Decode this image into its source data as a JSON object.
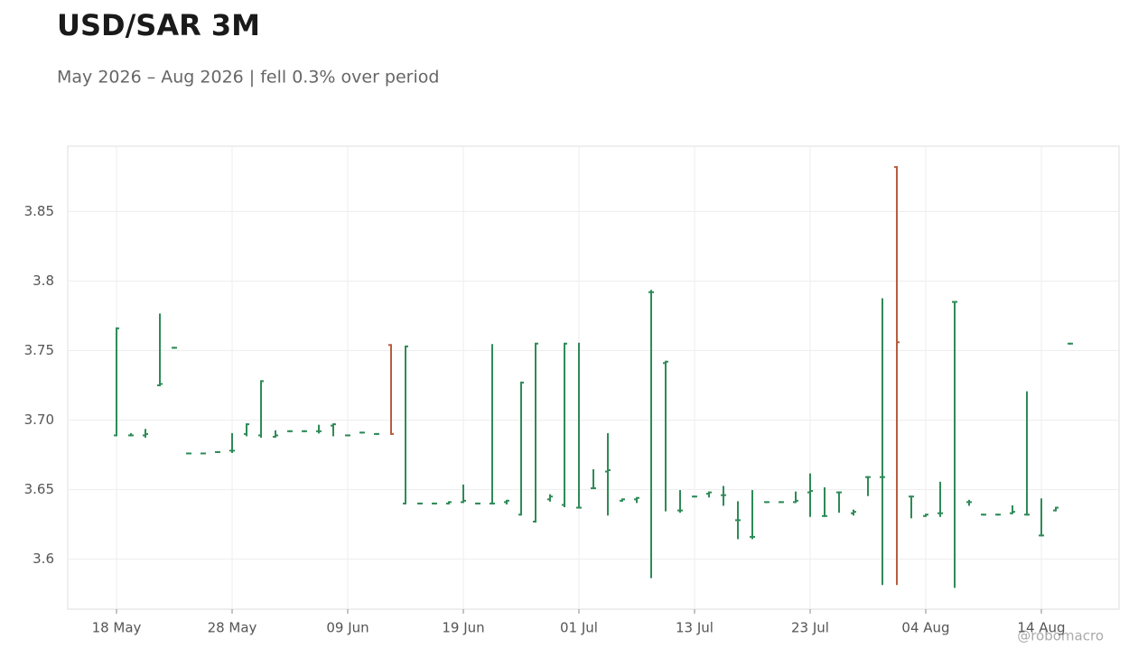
{
  "chart_data": {
    "type": "ohlc",
    "title": "USD/SAR 3M",
    "subtitle": "May 2026 – Aug 2026 | fell 0.3% over period",
    "watermark": "@robomacro",
    "categories": [
      "18 May",
      null,
      null,
      null,
      null,
      null,
      null,
      null,
      "28 May",
      null,
      null,
      null,
      null,
      null,
      null,
      null,
      "09 Jun",
      null,
      null,
      null,
      null,
      null,
      null,
      null,
      "19 Jun",
      null,
      null,
      null,
      null,
      null,
      null,
      null,
      "01 Jul",
      null,
      null,
      null,
      null,
      null,
      null,
      null,
      "13 Jul",
      null,
      null,
      null,
      null,
      null,
      null,
      null,
      "23 Jul",
      null,
      null,
      null,
      null,
      null,
      null,
      null,
      "04 Aug",
      null,
      null,
      null,
      null,
      null,
      null,
      null,
      "14 Aug",
      null,
      null
    ],
    "open": [
      3.689,
      3.689,
      3.689,
      3.725,
      3.752,
      3.676,
      3.676,
      3.677,
      3.678,
      3.69,
      3.689,
      3.688,
      3.692,
      3.692,
      3.692,
      3.696,
      3.689,
      3.691,
      3.69,
      3.754,
      3.64,
      3.64,
      3.64,
      3.64,
      3.641,
      3.64,
      3.64,
      3.641,
      3.632,
      3.627,
      3.643,
      3.639,
      3.637,
      3.651,
      3.663,
      3.642,
      3.643,
      3.792,
      3.741,
      3.635,
      3.645,
      3.647,
      3.646,
      3.628,
      3.616,
      3.641,
      3.641,
      3.641,
      3.648,
      3.631,
      3.648,
      3.633,
      3.659,
      3.659,
      3.882,
      3.645,
      3.631,
      3.633,
      3.785,
      3.641,
      3.632,
      3.632,
      3.633,
      3.632,
      3.617,
      3.635,
      3.755
    ],
    "high": [
      3.766,
      3.69,
      3.693,
      3.776,
      3.752,
      3.676,
      3.676,
      3.677,
      3.69,
      3.697,
      3.728,
      3.692,
      3.692,
      3.692,
      3.696,
      3.697,
      3.689,
      3.691,
      3.69,
      3.754,
      3.753,
      3.64,
      3.64,
      3.641,
      3.653,
      3.64,
      3.754,
      3.642,
      3.727,
      3.755,
      3.646,
      3.755,
      3.755,
      3.664,
      3.69,
      3.643,
      3.644,
      3.793,
      3.742,
      3.649,
      3.645,
      3.648,
      3.652,
      3.641,
      3.649,
      3.641,
      3.641,
      3.648,
      3.661,
      3.651,
      3.648,
      3.635,
      3.659,
      3.787,
      3.882,
      3.645,
      3.632,
      3.655,
      3.785,
      3.642,
      3.632,
      3.632,
      3.638,
      3.72,
      3.643,
      3.637,
      3.755
    ],
    "low": [
      3.689,
      3.689,
      3.688,
      3.725,
      3.752,
      3.676,
      3.676,
      3.677,
      3.677,
      3.689,
      3.688,
      3.688,
      3.692,
      3.692,
      3.691,
      3.689,
      3.689,
      3.691,
      3.69,
      3.69,
      3.64,
      3.64,
      3.64,
      3.64,
      3.641,
      3.64,
      3.64,
      3.64,
      3.632,
      3.627,
      3.642,
      3.638,
      3.637,
      3.651,
      3.632,
      3.642,
      3.641,
      3.587,
      3.635,
      3.634,
      3.645,
      3.645,
      3.639,
      3.615,
      3.615,
      3.641,
      3.641,
      3.641,
      3.631,
      3.631,
      3.634,
      3.632,
      3.646,
      3.582,
      3.582,
      3.63,
      3.631,
      3.631,
      3.58,
      3.639,
      3.632,
      3.632,
      3.633,
      3.632,
      3.617,
      3.635,
      3.755
    ],
    "close": [
      3.766,
      3.689,
      3.69,
      3.726,
      3.752,
      3.676,
      3.676,
      3.677,
      3.678,
      3.697,
      3.728,
      3.689,
      3.692,
      3.692,
      3.692,
      3.697,
      3.689,
      3.691,
      3.69,
      3.69,
      3.753,
      3.64,
      3.64,
      3.641,
      3.642,
      3.64,
      3.64,
      3.642,
      3.727,
      3.755,
      3.645,
      3.755,
      3.637,
      3.651,
      3.664,
      3.643,
      3.644,
      3.792,
      3.742,
      3.635,
      3.645,
      3.648,
      3.646,
      3.628,
      3.616,
      3.641,
      3.641,
      3.642,
      3.649,
      3.631,
      3.648,
      3.634,
      3.659,
      3.659,
      3.756,
      3.645,
      3.632,
      3.633,
      3.785,
      3.641,
      3.632,
      3.632,
      3.634,
      3.632,
      3.617,
      3.637,
      3.755
    ],
    "up_color": "#2e8b57",
    "down_color": "#b85c3f",
    "ylim": [
      3.564,
      3.897
    ],
    "yticks": [
      3.6,
      3.65,
      3.8,
      3.85,
      {
        "value": 3.7,
        "label": "3.70"
      },
      {
        "value": 3.75,
        "label": "3.75"
      },
      {
        "value": 3.85,
        "label": "3.85"
      }
    ],
    "grid": true
  }
}
